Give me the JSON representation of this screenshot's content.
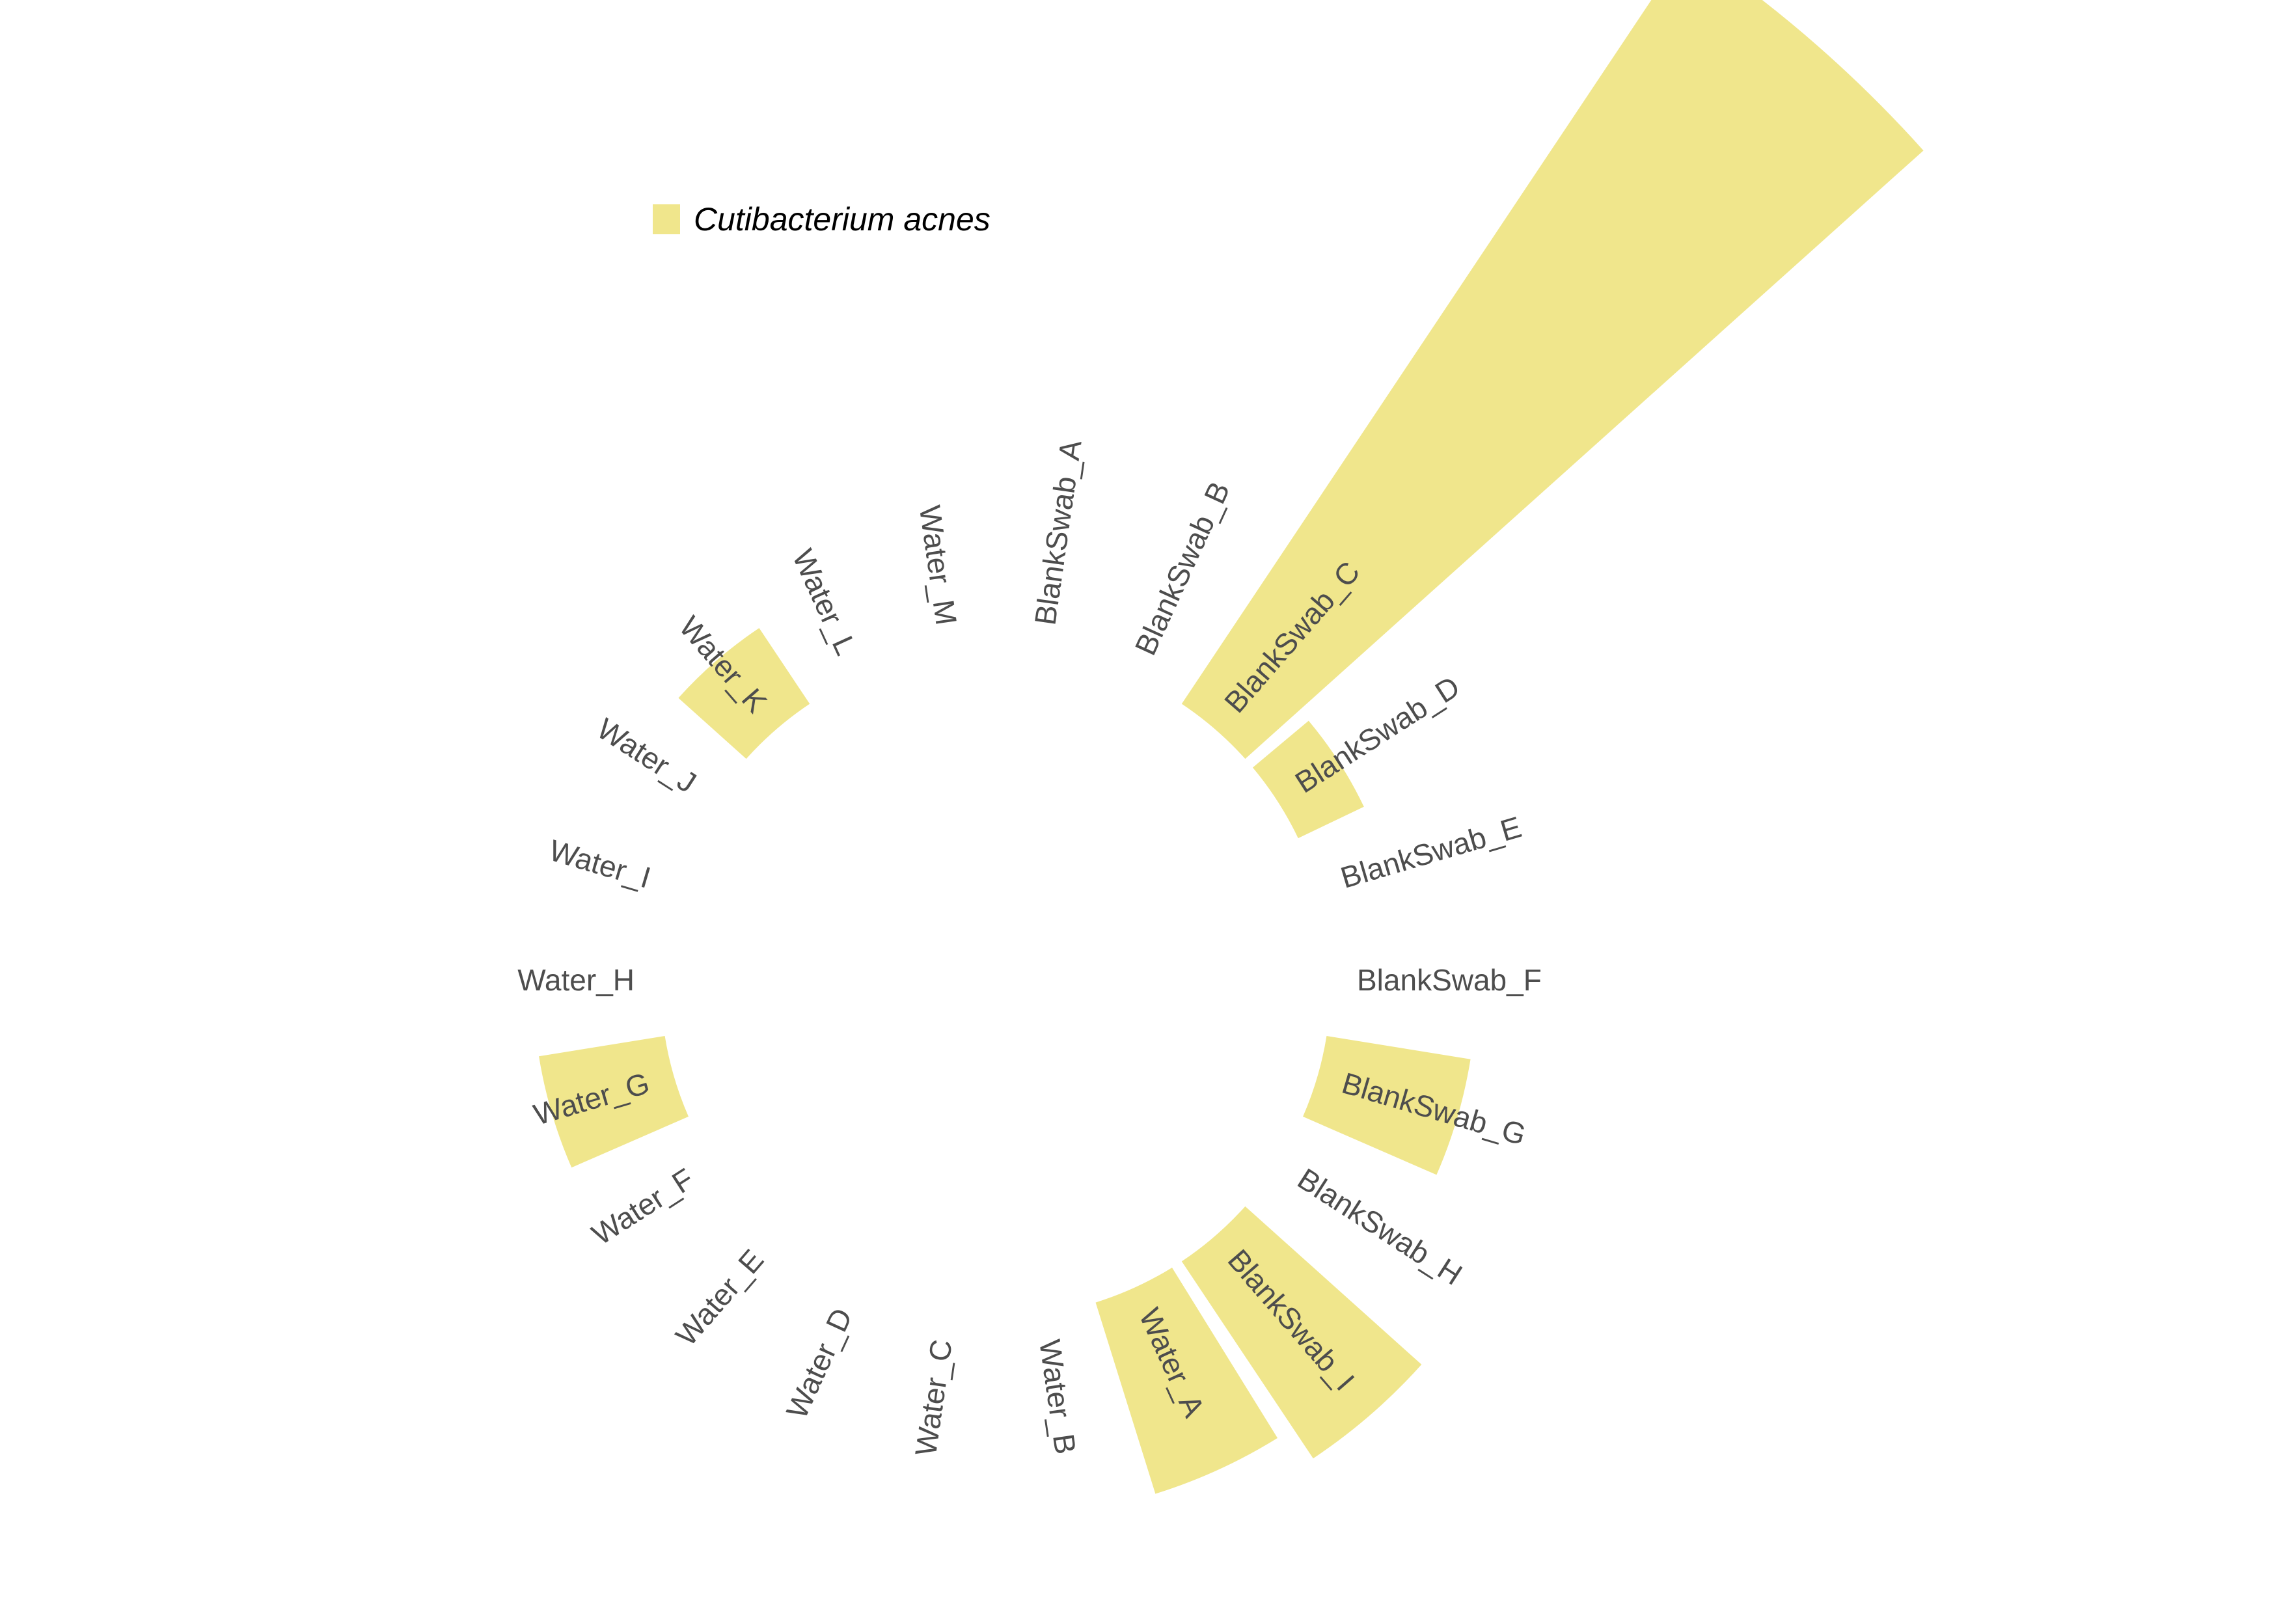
{
  "chart_data": {
    "type": "bar",
    "coord": "polar",
    "categories": [
      "BlankSwab_A",
      "BlankSwab_B",
      "BlankSwab_C",
      "BlankSwab_D",
      "BlankSwab_E",
      "BlankSwab_F",
      "BlankSwab_G",
      "BlankSwab_H",
      "BlankSwab_I",
      "Water_A",
      "Water_B",
      "Water_C",
      "Water_D",
      "Water_E",
      "Water_F",
      "Water_G",
      "Water_H",
      "Water_I",
      "Water_J",
      "Water_K",
      "Water_L",
      "Water_M"
    ],
    "series": [
      {
        "name": "Cutibacterium acnes",
        "color": "#f0e68c",
        "values": [
          0,
          0,
          1.0,
          0.08,
          0,
          0,
          0.16,
          0,
          0.26,
          0.22,
          0,
          0,
          0,
          0,
          0,
          0.14,
          0,
          0,
          0,
          0.1,
          0,
          0
        ]
      }
    ],
    "legend": {
      "position": "top-left",
      "entries": [
        "Cutibacterium acnes"
      ]
    },
    "grid": false
  }
}
